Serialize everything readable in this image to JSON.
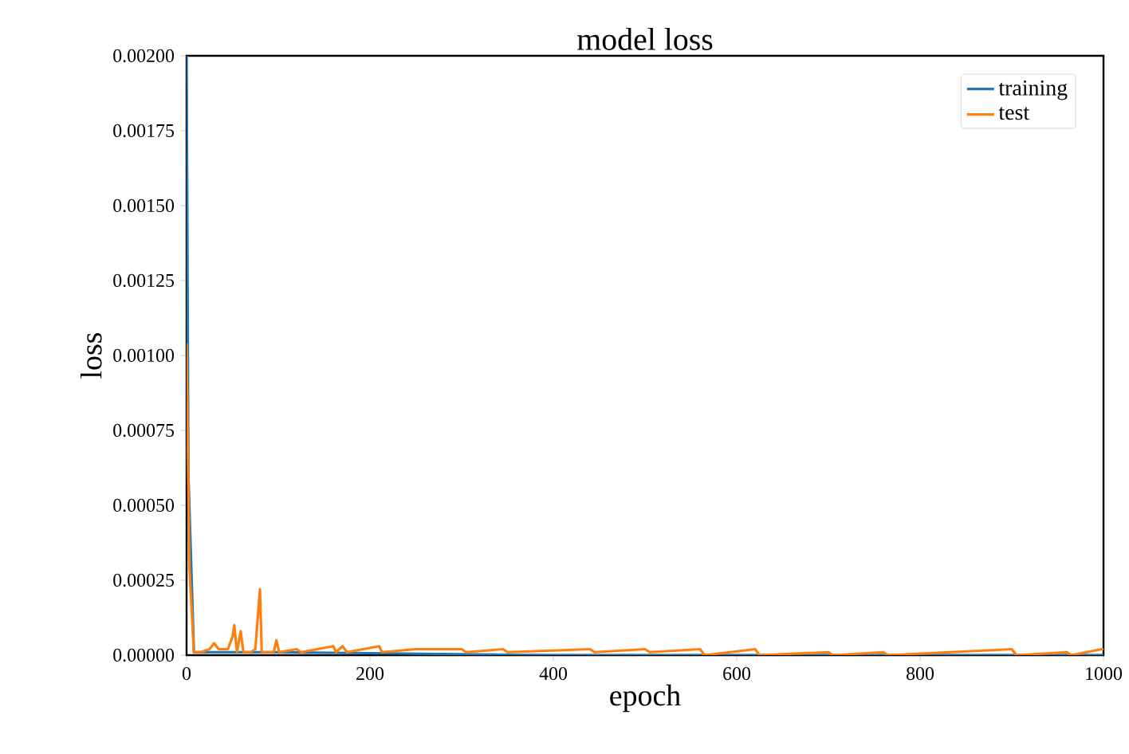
{
  "chart_data": {
    "type": "line",
    "title": "model loss",
    "xlabel": "epoch",
    "ylabel": "loss",
    "legend": "top right",
    "marker": "none",
    "line_style": "solid",
    "xlim": [
      0,
      1000
    ],
    "ylim": [
      0,
      0.002
    ],
    "xticks": [
      0,
      200,
      400,
      600,
      800,
      1000
    ],
    "yticks": [
      {
        "value": 0,
        "label": "0.00000"
      },
      {
        "value": 0.00025,
        "label": "0.00025"
      },
      {
        "value": 0.0005,
        "label": "0.00050"
      },
      {
        "value": 0.00075,
        "label": "0.00075"
      },
      {
        "value": 0.001,
        "label": "0.00100"
      },
      {
        "value": 0.00125,
        "label": "0.00125"
      },
      {
        "value": 0.0015,
        "label": "0.00150"
      },
      {
        "value": 0.00175,
        "label": "0.00175"
      },
      {
        "value": 0.002,
        "label": "0.00200"
      }
    ],
    "series": [
      {
        "name": "training",
        "color": "#1f77b4",
        "x": [
          0,
          2,
          8,
          20,
          100,
          400,
          1000
        ],
        "values": [
          0.002,
          0.0006,
          1e-05,
          1e-05,
          1e-05,
          0,
          0
        ]
      },
      {
        "name": "test",
        "color": "#ff7f0e",
        "x": [
          0,
          3,
          8,
          15,
          25,
          30,
          35,
          45,
          50,
          52,
          55,
          59,
          62,
          70,
          75,
          80,
          82,
          95,
          98,
          101,
          120,
          125,
          160,
          163,
          170,
          175,
          210,
          213,
          250,
          300,
          305,
          345,
          350,
          440,
          445,
          500,
          505,
          560,
          565,
          620,
          625,
          700,
          705,
          760,
          765,
          900,
          905,
          960,
          965,
          998,
          1000
        ],
        "values": [
          0.00104,
          0.0003,
          1e-05,
          1e-05,
          2e-05,
          4e-05,
          2e-05,
          2e-05,
          6e-05,
          0.0001,
          1e-05,
          8e-05,
          1e-05,
          1e-05,
          2e-05,
          0.00022,
          1e-05,
          1e-05,
          5e-05,
          1e-05,
          2e-05,
          1e-05,
          3e-05,
          1e-05,
          3e-05,
          1e-05,
          3e-05,
          1e-05,
          2e-05,
          2e-05,
          1e-05,
          2e-05,
          1e-05,
          2e-05,
          1e-05,
          2e-05,
          1e-05,
          2e-05,
          0,
          2e-05,
          0,
          1e-05,
          0,
          1e-05,
          0,
          2e-05,
          0,
          1e-05,
          0,
          2e-05,
          2e-05
        ]
      }
    ]
  }
}
